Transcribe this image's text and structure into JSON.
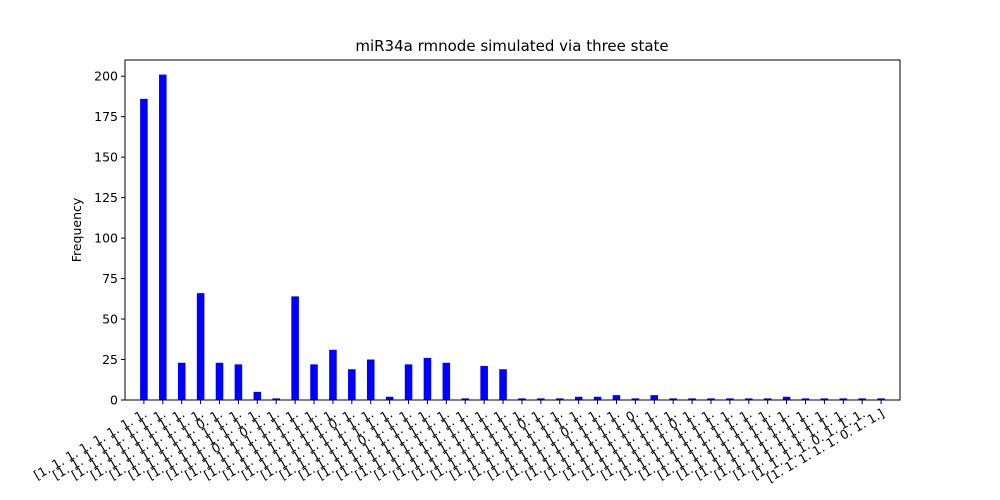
{
  "chart_data": {
    "type": "bar",
    "title": "miR34a rmnode simulated via three state",
    "xlabel": "",
    "ylabel": "Frequency",
    "ylim": [
      0,
      210
    ],
    "yticks": [
      0,
      25,
      50,
      75,
      100,
      125,
      150,
      175,
      200
    ],
    "grid": false,
    "bar_color": "#0000ff",
    "categories": [
      "[1. 1. 1. 1. 1. 1. 1. 1.",
      "[1. 1. 1. 1. 1. 1. 1. 1.",
      "[1. 1. 1. 1. 1. 1. 1. 1.",
      "[1. 1. 1. 1. 1. 1. 1. 1.",
      "[1. 1. 1. 1. 1. 1. 0. 1.",
      "[1. 1. 1. 1. 1. 1. 1. 1.",
      "[1. 1. 1. 1. 1. 1. 1. 1.",
      "[1. 1. 1. 0. 1. 0. 1. 1.",
      "[1. 1. 1. 1. 1. 1. 1. 1.",
      "[1. 1. 1. 1. 1. 1. 1. 1.",
      "[1. 1. 1. 1. 1. 1. 1. 1.",
      "[1. 1. 1. 1. 1. 1. 0. 1.",
      "[1. 1. 1. 1. 1. 1. 1. 1.",
      "[1. 1. 1. 1. 1. 1. 1. 1.",
      "[1. 1. 1. 1. 0. 1. 1. 1.",
      "[1. 1. 1. 1. 1. 1. 1. 1.",
      "[1. 1. 1. 1. 1. 1. 1. 1.",
      "[1. 1. 1. 1. 1. 1. 1. 1.",
      "[1. 1. 1. 1. 1. 1. 1. 1.",
      "[1. 1. 1. 1. 1. 1. 1. 1.",
      "[1. 1. 1. 1. 1. 1. 1. 1.",
      "[1. 1. 1. 1. 1. 1. 0. 1.",
      "[1. 1. 1. 1. 1. 1. 1. 1.",
      "[1. 1. 1. 1. 1. 1. 1. 1.",
      "[1. 1. 1. 1. 1. 0. 1. 1.",
      "[1. 1. 1. 1. 1. 1. 1. 1.",
      "[1. 1. 1. 1. 1. 1. 1. 0.",
      "[1. 1. 1. 1. 1. 1. 1. 1.",
      "[1. 1. 1. 1. 1. 1. 1. 1.",
      "[1. 1. 1. 1. 1. 1. 0. 1.",
      "[1. 1. 1. 1. 1. 1. 1. 1.",
      "[1. 1. 1. 1. 1. 1. 1. 1.",
      "[1. 1. 1. 1. 1. 1. 1. 1.",
      "[1. 1. 1. 1. 1. 1. 1. 1.",
      "[1. 1. 1. 1. 1. 1. 1. 1.",
      "[1. 1. 1. 1. 1. 1. 1. 1.",
      "[1. 1. 1. 1. 1. 1. 1. 1.",
      "[1. 1. 1. 1. 1. 1. 1. 1.",
      "[1. 1. 1. 1. 0. 1. 1. 1.",
      "[1. 1. 1. 1. 1. 0. 1. 1.]"
    ],
    "values": [
      186,
      201,
      23,
      66,
      23,
      22,
      5,
      1,
      64,
      22,
      31,
      19,
      25,
      2,
      22,
      26,
      23,
      1,
      21,
      19,
      1,
      1,
      1,
      2,
      2,
      3,
      1,
      3,
      1,
      1,
      1,
      1,
      1,
      1,
      2,
      1,
      1,
      1,
      1,
      1
    ]
  }
}
